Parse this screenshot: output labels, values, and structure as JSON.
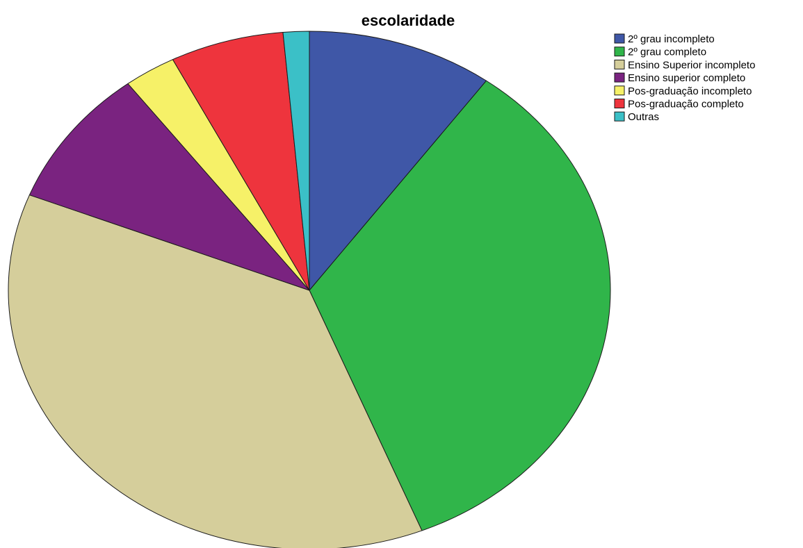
{
  "chart_data": {
    "type": "pie",
    "title": "escolaridade",
    "start_angle_deg": 0,
    "direction": "clockwise",
    "legend_position": "top-right",
    "slices": [
      {
        "label": "2º grau incompleto",
        "value": 10.0,
        "color": "#3F57A7"
      },
      {
        "label": "2º grau completo",
        "value": 33.9,
        "color": "#30B54A"
      },
      {
        "label": "Ensino Superior incompleto",
        "value": 37.1,
        "color": "#D5CE9B"
      },
      {
        "label": "Ensino superior completo",
        "value": 8.7,
        "color": "#7A2380"
      },
      {
        "label": "Pos-graduação incompleto",
        "value": 2.8,
        "color": "#F6F168"
      },
      {
        "label": "Pos-graduação completo",
        "value": 6.1,
        "color": "#EE343D"
      },
      {
        "label": "Outras",
        "value": 1.4,
        "color": "#3BC0C7"
      }
    ]
  }
}
